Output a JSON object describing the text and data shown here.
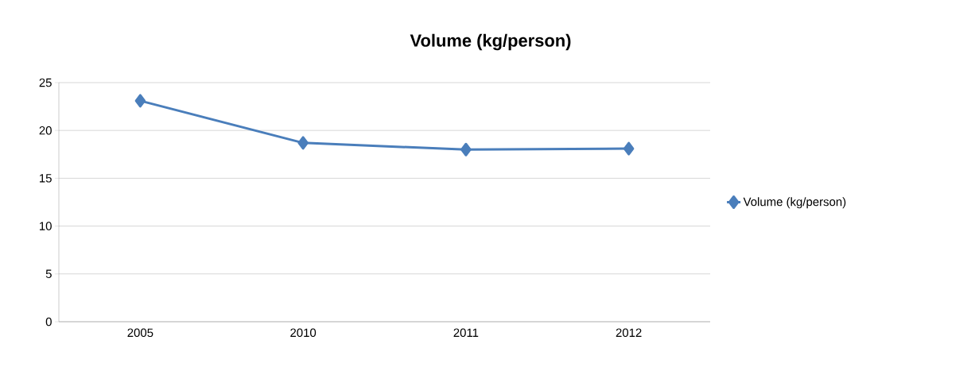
{
  "chart_data": {
    "type": "line",
    "title": "Volume (kg/person)",
    "categories": [
      "2005",
      "2010",
      "2011",
      "2012"
    ],
    "series": [
      {
        "name": "Volume (kg/person)",
        "color": "#4a7ebb",
        "values": [
          23.1,
          18.7,
          18.0,
          18.1
        ]
      }
    ],
    "ylim": [
      0,
      25
    ],
    "yticks": [
      0,
      5,
      10,
      15,
      20,
      25
    ],
    "grid": "y",
    "legend": "right",
    "marker": "diamond",
    "line_style": "solid"
  }
}
